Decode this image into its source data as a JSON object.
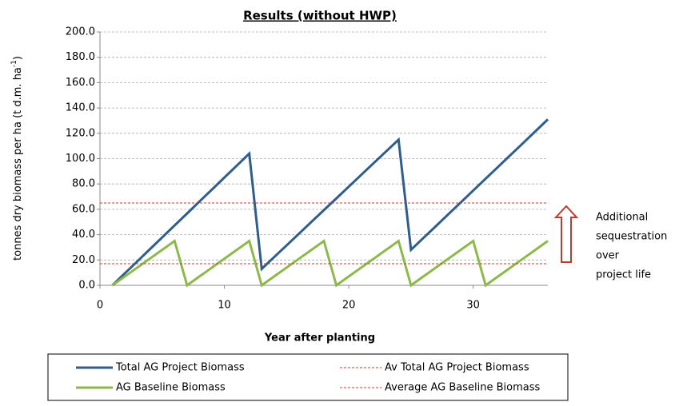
{
  "chart_data": {
    "type": "line",
    "title": "Results (without HWP)",
    "xlabel": "Year after planting",
    "ylabel": {
      "text": "tonnes dry biomass per ha (t d.m. ha",
      "sup": "-1",
      "end": ")"
    },
    "xlim": [
      0,
      36
    ],
    "xticks": [
      0,
      10,
      20,
      30
    ],
    "ylim": [
      0,
      200
    ],
    "yticks": [
      {
        "value": 0,
        "label": "0.0"
      },
      {
        "value": 20,
        "label": "20.0"
      },
      {
        "value": 40,
        "label": "40.0"
      },
      {
        "value": 60,
        "label": "60.0"
      },
      {
        "value": 80,
        "label": "80.0"
      },
      {
        "value": 100,
        "label": "100.0"
      },
      {
        "value": 120,
        "label": "120.0"
      },
      {
        "value": 140,
        "label": "140.0"
      },
      {
        "value": 160,
        "label": "160.0"
      },
      {
        "value": 180,
        "label": "180.0"
      },
      {
        "value": 200,
        "label": "200.0"
      }
    ],
    "grid": true,
    "series": [
      {
        "name": "Total AG Project Biomass",
        "color": "#2f5d8c",
        "dashed": false,
        "x": [
          1,
          2,
          3,
          4,
          5,
          6,
          7,
          8,
          9,
          10,
          11,
          12,
          13,
          14,
          15,
          16,
          17,
          18,
          19,
          20,
          21,
          22,
          23,
          24,
          25,
          26,
          27,
          28,
          29,
          30,
          31,
          32,
          33,
          34,
          35,
          36
        ],
        "values": [
          0,
          9.5,
          18.9,
          28.4,
          37.8,
          47.3,
          56.7,
          66.2,
          75.6,
          85.1,
          94.5,
          104,
          13,
          22.3,
          31.5,
          40.8,
          50.1,
          59.4,
          68.6,
          77.9,
          87.2,
          96.5,
          105.7,
          115,
          28,
          37.4,
          46.7,
          56.1,
          65.4,
          74.8,
          84.2,
          93.5,
          102.9,
          112.2,
          121.6,
          131
        ]
      },
      {
        "name": "AG Baseline Biomass",
        "color": "#8db94a",
        "dashed": false,
        "x": [
          1,
          2,
          3,
          4,
          5,
          6,
          7,
          8,
          9,
          10,
          11,
          12,
          13,
          14,
          15,
          16,
          17,
          18,
          19,
          20,
          21,
          22,
          23,
          24,
          25,
          26,
          27,
          28,
          29,
          30,
          31,
          32,
          33,
          34,
          35,
          36
        ],
        "values": [
          0,
          7,
          14,
          21,
          28,
          35,
          0,
          7,
          14,
          21,
          28,
          35,
          0,
          7,
          14,
          21,
          28,
          35,
          0,
          7,
          14,
          21,
          28,
          35,
          0,
          7,
          14,
          21,
          28,
          35,
          0,
          7,
          14,
          21,
          28,
          35
        ]
      },
      {
        "name": "Av Total AG Project Biomass",
        "color": "#e03030",
        "dashed": true,
        "x": [
          0,
          36
        ],
        "values": [
          65,
          65
        ]
      },
      {
        "name": "Average AG Baseline Biomass",
        "color": "#e03030",
        "dashed": true,
        "x": [
          0,
          36
        ],
        "values": [
          17,
          17
        ]
      }
    ],
    "annotation": [
      "Additional",
      "sequestration",
      "over",
      "project life"
    ]
  }
}
